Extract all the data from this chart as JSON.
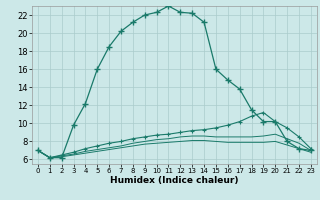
{
  "title": "",
  "xlabel": "Humidex (Indice chaleur)",
  "bg_color": "#cce8e8",
  "grid_color": "#aacccc",
  "line_color": "#1a7a6a",
  "xlim": [
    -0.5,
    23.5
  ],
  "ylim": [
    5.5,
    23.0
  ],
  "xticks": [
    0,
    1,
    2,
    3,
    4,
    5,
    6,
    7,
    8,
    9,
    10,
    11,
    12,
    13,
    14,
    15,
    16,
    17,
    18,
    19,
    20,
    21,
    22,
    23
  ],
  "yticks": [
    6,
    8,
    10,
    12,
    14,
    16,
    18,
    20,
    22
  ],
  "line1_x": [
    0,
    1,
    2,
    3,
    4,
    5,
    6,
    7,
    8,
    9,
    10,
    11,
    12,
    13,
    14,
    15,
    16,
    17,
    18,
    19,
    20,
    21,
    22,
    23
  ],
  "line1_y": [
    7.0,
    6.2,
    6.2,
    9.8,
    12.2,
    16.0,
    18.5,
    20.2,
    21.2,
    22.0,
    22.3,
    23.0,
    22.3,
    22.2,
    21.2,
    16.0,
    14.8,
    13.8,
    11.5,
    10.2,
    10.2,
    8.0,
    7.2,
    7.0
  ],
  "line2_x": [
    0,
    1,
    2,
    3,
    4,
    5,
    6,
    7,
    8,
    9,
    10,
    11,
    12,
    13,
    14,
    15,
    16,
    17,
    18,
    19,
    20,
    21,
    22,
    23
  ],
  "line2_y": [
    7.0,
    6.2,
    6.5,
    6.8,
    7.2,
    7.5,
    7.8,
    8.0,
    8.3,
    8.5,
    8.7,
    8.8,
    9.0,
    9.2,
    9.3,
    9.5,
    9.8,
    10.2,
    10.8,
    11.2,
    10.2,
    9.5,
    8.5,
    7.2
  ],
  "line3_x": [
    0,
    1,
    2,
    3,
    4,
    5,
    6,
    7,
    8,
    9,
    10,
    11,
    12,
    13,
    14,
    15,
    16,
    17,
    18,
    19,
    20,
    21,
    22,
    23
  ],
  "line3_y": [
    7.0,
    6.2,
    6.4,
    6.6,
    6.9,
    7.1,
    7.3,
    7.5,
    7.8,
    8.0,
    8.2,
    8.3,
    8.5,
    8.6,
    8.6,
    8.5,
    8.5,
    8.5,
    8.5,
    8.6,
    8.8,
    8.3,
    7.8,
    7.0
  ],
  "line4_x": [
    0,
    1,
    2,
    3,
    4,
    5,
    6,
    7,
    8,
    9,
    10,
    11,
    12,
    13,
    14,
    15,
    16,
    17,
    18,
    19,
    20,
    21,
    22,
    23
  ],
  "line4_y": [
    7.0,
    6.2,
    6.3,
    6.5,
    6.7,
    6.9,
    7.1,
    7.3,
    7.5,
    7.7,
    7.8,
    7.9,
    8.0,
    8.1,
    8.1,
    8.0,
    7.9,
    7.9,
    7.9,
    7.9,
    8.0,
    7.6,
    7.2,
    6.8
  ]
}
